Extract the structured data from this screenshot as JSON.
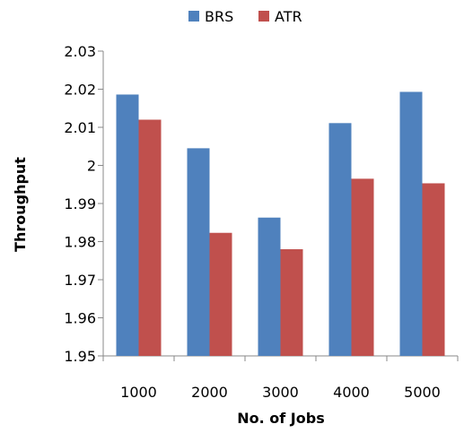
{
  "chart_data": {
    "type": "bar",
    "categories": [
      "1000",
      "2000",
      "3000",
      "4000",
      "5000"
    ],
    "series": [
      {
        "name": "BRS",
        "color": "#4F81BD",
        "values": [
          2.0186,
          2.0045,
          1.9863,
          2.0111,
          2.0193
        ]
      },
      {
        "name": "ATR",
        "color": "#C0504D",
        "values": [
          2.012,
          1.9823,
          1.978,
          1.9965,
          1.9953
        ]
      }
    ],
    "xlabel": "No. of Jobs",
    "ylabel": "Throughput",
    "ylim": [
      1.95,
      2.03
    ],
    "yticks": [
      "1.95",
      "1.96",
      "1.97",
      "1.98",
      "1.99",
      "2",
      "2.01",
      "2.02",
      "2.03"
    ],
    "grid": false,
    "legend_position": "top"
  }
}
